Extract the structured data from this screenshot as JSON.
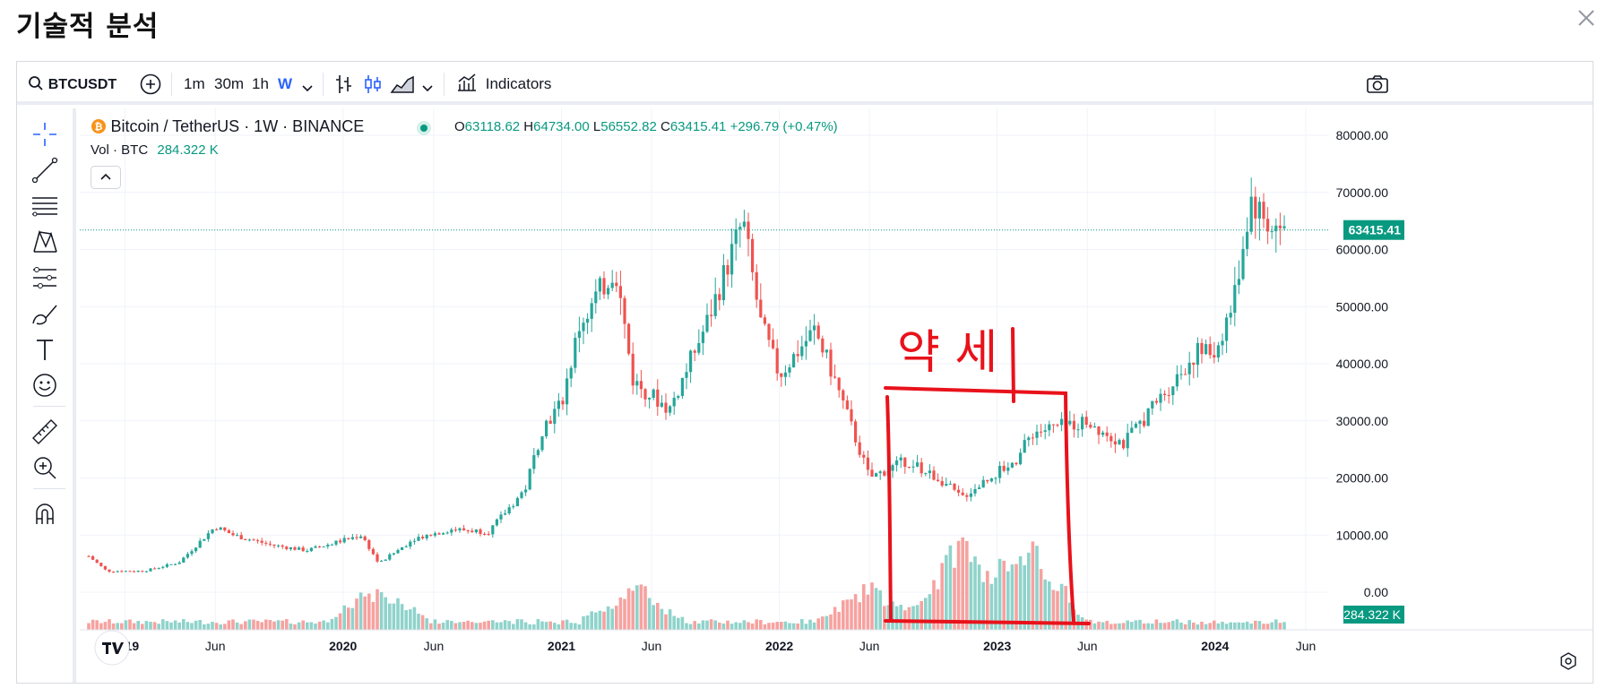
{
  "page_title": "기술적 분석",
  "toolbar": {
    "symbol": "BTCUSDT",
    "intervals": [
      "1m",
      "30m",
      "1h",
      "W"
    ],
    "active_interval": "W",
    "indicators_label": "Indicators"
  },
  "legend": {
    "symbol_line": "Bitcoin / TetherUS · 1W · BINANCE",
    "open_label": "O",
    "open": "63118.62",
    "high_label": "H",
    "high": "64734.00",
    "low_label": "L",
    "low": "56552.82",
    "close_label": "C",
    "close": "63415.41",
    "change": "+296.79 (+0.47%)",
    "vol_label": "Vol · BTC",
    "vol_value": "284.322 K"
  },
  "annotation_text": "약 세",
  "colors": {
    "up": "#26a69a",
    "down": "#ef5350",
    "volume_up": "#8fd3cb",
    "volume_down": "#f6a2a0",
    "accent": "#2962ff",
    "annotation": "#e8121b"
  },
  "icons": [
    "search-icon",
    "plus-circle-icon",
    "chevron-down-icon",
    "bar-chart-icon",
    "candle-icon",
    "area-chart-icon",
    "indicators-icon",
    "camera-icon",
    "crosshair-icon",
    "trend-line-icon",
    "fib-icon",
    "pattern-icon",
    "prediction-icon",
    "brush-icon",
    "text-icon",
    "emoji-icon",
    "ruler-icon",
    "zoom-icon",
    "magnet-icon",
    "close-icon",
    "settings-icon",
    "tradingview-logo-icon"
  ],
  "chart_data": {
    "type": "candlestick",
    "title": "Bitcoin / TetherUS · 1W · BINANCE",
    "y_ticks": [
      "80000.00",
      "70000.00",
      "60000.00",
      "50000.00",
      "40000.00",
      "30000.00",
      "20000.00",
      "10000.00",
      "0.00"
    ],
    "ylim": [
      0,
      80000
    ],
    "x_ticks": [
      "2019",
      "Jun",
      "2020",
      "Jun",
      "2021",
      "Jun",
      "2022",
      "Jun",
      "2023",
      "Jun",
      "2024",
      "Jun"
    ],
    "last_price_label": "63415.41",
    "last_volume_label": "284.322 K",
    "close_path": [
      [
        "2018-11",
        6300
      ],
      [
        "2018-12",
        3700
      ],
      [
        "2019-02",
        3700
      ],
      [
        "2019-04",
        5200
      ],
      [
        "2019-06",
        11500
      ],
      [
        "2019-07",
        10000
      ],
      [
        "2019-09",
        8300
      ],
      [
        "2019-11",
        7300
      ],
      [
        "2020-02",
        10000
      ],
      [
        "2020-03",
        5000
      ],
      [
        "2020-05",
        9500
      ],
      [
        "2020-07",
        11000
      ],
      [
        "2020-09",
        10600
      ],
      [
        "2020-11",
        18000
      ],
      [
        "2020-12",
        29000
      ],
      [
        "2021-01",
        33000
      ],
      [
        "2021-02",
        47000
      ],
      [
        "2021-04",
        57000
      ],
      [
        "2021-05",
        37000
      ],
      [
        "2021-07",
        32000
      ],
      [
        "2021-09",
        47000
      ],
      [
        "2021-11",
        65000
      ],
      [
        "2021-12",
        47000
      ],
      [
        "2022-01",
        38000
      ],
      [
        "2022-03",
        46000
      ],
      [
        "2022-04",
        38000
      ],
      [
        "2022-06",
        20000
      ],
      [
        "2022-08",
        23000
      ],
      [
        "2022-10",
        19500
      ],
      [
        "2022-11",
        16500
      ],
      [
        "2023-01",
        21000
      ],
      [
        "2023-02",
        23000
      ],
      [
        "2023-03",
        28000
      ],
      [
        "2023-06",
        30000
      ],
      [
        "2023-08",
        26000
      ],
      [
        "2023-10",
        34000
      ],
      [
        "2023-12",
        42000
      ],
      [
        "2024-01",
        42000
      ],
      [
        "2024-02",
        51000
      ],
      [
        "2024-03",
        69000
      ],
      [
        "2024-04",
        64000
      ],
      [
        "2024-05",
        63415
      ]
    ],
    "volume_spikes": [
      [
        "2020-03",
        "high"
      ],
      [
        "2021-05",
        "high"
      ],
      [
        "2022-06",
        "high"
      ],
      [
        "2022-11",
        "very high"
      ],
      [
        "2023-03",
        "very high"
      ]
    ]
  }
}
